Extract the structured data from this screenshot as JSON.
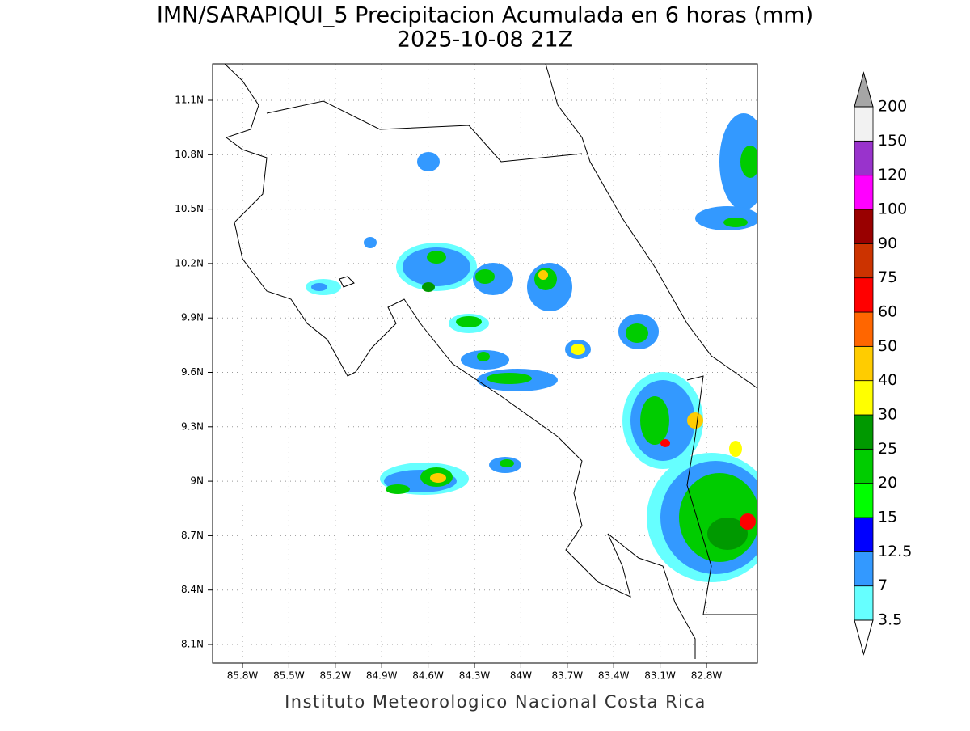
{
  "title": "IMN/SARAPIQUI_5 Precipitacion Acumulada en 6 horas (mm)",
  "subtitle": "2025-10-08 21Z",
  "footer": "Instituto Meteorologico Nacional Costa Rica",
  "map": {
    "lon_ticks": [
      "85.8W",
      "85.5W",
      "85.2W",
      "84.9W",
      "84.6W",
      "84.3W",
      "84W",
      "83.7W",
      "83.4W",
      "83.1W",
      "82.8W"
    ],
    "lat_ticks": [
      "11.1N",
      "10.8N",
      "10.5N",
      "10.2N",
      "9.9N",
      "9.6N",
      "9.3N",
      "9N",
      "8.7N",
      "8.4N",
      "8.1N"
    ],
    "grid": true
  },
  "colorbar": {
    "levels": [
      3.5,
      7,
      12.5,
      15,
      20,
      25,
      30,
      40,
      50,
      60,
      75,
      90,
      100,
      120,
      150,
      200
    ],
    "colors": [
      "#66ffff",
      "#3399ff",
      "#0000ff",
      "#00ff00",
      "#00cc00",
      "#009900",
      "#ffff00",
      "#ffcc00",
      "#ff6600",
      "#ff0000",
      "#cc3300",
      "#990000",
      "#ff00ff",
      "#9933cc",
      "#f2f2f2"
    ],
    "under_color": "#ffffff",
    "over_color": "#a6a6a6"
  }
}
